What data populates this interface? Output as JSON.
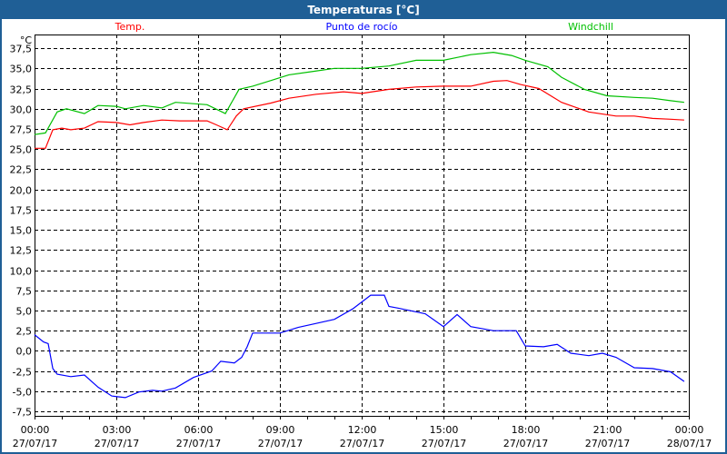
{
  "window": {
    "title": "Temperaturas [°C]"
  },
  "chart_data": {
    "type": "line",
    "title": "Temperaturas [°C]",
    "ylabel": "°C",
    "xlabel": "",
    "ylim": [
      -8.06,
      39.2
    ],
    "xlim": [
      0,
      24
    ],
    "grid": true,
    "legend_placement": "top",
    "y_ticks": [
      -7.5,
      -5,
      -2.5,
      0,
      2.5,
      5,
      7.5,
      10,
      12.5,
      15,
      17.5,
      20,
      22.5,
      25,
      27.5,
      30,
      32.5,
      35,
      37.5
    ],
    "y_tick_labels": [
      "-7,5",
      "-5,0",
      "-2,5",
      "0,0",
      "2,5",
      "5,0",
      "7,5",
      "10,0",
      "12,5",
      "15,0",
      "17,5",
      "20,0",
      "22,5",
      "25,0",
      "27,5",
      "30,0",
      "32,5",
      "35,0",
      "37,5"
    ],
    "x_ticks": [
      0,
      3,
      6,
      9,
      12,
      15,
      18,
      21,
      24
    ],
    "x_tick_labels": [
      [
        "00:00",
        "27/07/17"
      ],
      [
        "03:00",
        "27/07/17"
      ],
      [
        "06:00",
        "27/07/17"
      ],
      [
        "09:00",
        "27/07/17"
      ],
      [
        "12:00",
        "27/07/17"
      ],
      [
        "15:00",
        "27/07/17"
      ],
      [
        "18:00",
        "27/07/17"
      ],
      [
        "21:00",
        "27/07/17"
      ],
      [
        "00:00",
        "28/07/17"
      ]
    ],
    "series": [
      {
        "name": "Temp.",
        "color": "#ff0000",
        "points": [
          [
            0,
            25.1
          ],
          [
            0.4,
            25.1
          ],
          [
            0.67,
            27.4
          ],
          [
            1,
            27.6
          ],
          [
            1.33,
            27.4
          ],
          [
            1.83,
            27.6
          ],
          [
            2.33,
            28.4
          ],
          [
            3,
            28.3
          ],
          [
            3.5,
            28.0
          ],
          [
            4,
            28.3
          ],
          [
            4.67,
            28.6
          ],
          [
            5.33,
            28.5
          ],
          [
            6.33,
            28.5
          ],
          [
            6.67,
            28.0
          ],
          [
            7.07,
            27.4
          ],
          [
            7.4,
            29.1
          ],
          [
            7.67,
            30.0
          ],
          [
            8.67,
            30.7
          ],
          [
            9.33,
            31.3
          ],
          [
            10.33,
            31.8
          ],
          [
            11.33,
            32.1
          ],
          [
            12,
            31.9
          ],
          [
            13,
            32.4
          ],
          [
            14,
            32.7
          ],
          [
            15,
            32.8
          ],
          [
            16,
            32.8
          ],
          [
            16.83,
            33.4
          ],
          [
            17.33,
            33.5
          ],
          [
            17.83,
            33.0
          ],
          [
            18.5,
            32.5
          ],
          [
            19.33,
            30.8
          ],
          [
            20.33,
            29.6
          ],
          [
            21.33,
            29.1
          ],
          [
            22,
            29.1
          ],
          [
            22.67,
            28.8
          ],
          [
            23.33,
            28.7
          ],
          [
            23.83,
            28.6
          ]
        ]
      },
      {
        "name": "Punto de rocío",
        "color": "#0000ff",
        "points": [
          [
            0,
            2.0
          ],
          [
            0.33,
            1.1
          ],
          [
            0.5,
            0.9
          ],
          [
            0.67,
            -2.2
          ],
          [
            0.83,
            -2.9
          ],
          [
            1.33,
            -3.2
          ],
          [
            1.83,
            -3.0
          ],
          [
            2.33,
            -4.5
          ],
          [
            2.83,
            -5.6
          ],
          [
            3.33,
            -5.8
          ],
          [
            3.83,
            -5.1
          ],
          [
            4.33,
            -4.9
          ],
          [
            4.67,
            -5.0
          ],
          [
            5.17,
            -4.6
          ],
          [
            5.83,
            -3.3
          ],
          [
            6.5,
            -2.5
          ],
          [
            6.83,
            -1.3
          ],
          [
            7.33,
            -1.5
          ],
          [
            7.6,
            -0.8
          ],
          [
            7.8,
            0.5
          ],
          [
            8,
            2.2
          ],
          [
            9,
            2.2
          ],
          [
            9.67,
            2.9
          ],
          [
            10.33,
            3.4
          ],
          [
            11,
            3.9
          ],
          [
            11.67,
            5.2
          ],
          [
            12.33,
            6.9
          ],
          [
            12.83,
            6.9
          ],
          [
            13,
            5.5
          ],
          [
            13.33,
            5.3
          ],
          [
            14.33,
            4.6
          ],
          [
            15,
            3.0
          ],
          [
            15.5,
            4.5
          ],
          [
            16,
            3.0
          ],
          [
            16.83,
            2.5
          ],
          [
            17.67,
            2.5
          ],
          [
            18,
            0.6
          ],
          [
            18.67,
            0.5
          ],
          [
            19.17,
            0.8
          ],
          [
            19.67,
            -0.3
          ],
          [
            20.33,
            -0.6
          ],
          [
            20.83,
            -0.3
          ],
          [
            21.33,
            -0.8
          ],
          [
            22,
            -2.1
          ],
          [
            22.67,
            -2.2
          ],
          [
            23.33,
            -2.6
          ],
          [
            23.83,
            -3.8
          ]
        ]
      },
      {
        "name": "Windchill",
        "color": "#00c000",
        "points": [
          [
            0,
            26.8
          ],
          [
            0.4,
            27.0
          ],
          [
            0.83,
            29.6
          ],
          [
            1.17,
            30.0
          ],
          [
            1.83,
            29.4
          ],
          [
            2.33,
            30.4
          ],
          [
            3,
            30.3
          ],
          [
            3.33,
            30.0
          ],
          [
            4,
            30.4
          ],
          [
            4.67,
            30.1
          ],
          [
            5.17,
            30.8
          ],
          [
            6.33,
            30.5
          ],
          [
            7,
            29.4
          ],
          [
            7.5,
            32.4
          ],
          [
            8,
            32.8
          ],
          [
            8.67,
            33.5
          ],
          [
            9.33,
            34.2
          ],
          [
            10.17,
            34.6
          ],
          [
            11,
            35.0
          ],
          [
            12,
            35.0
          ],
          [
            13,
            35.3
          ],
          [
            14,
            36.0
          ],
          [
            15,
            36.0
          ],
          [
            16,
            36.7
          ],
          [
            16.83,
            37.0
          ],
          [
            17.5,
            36.6
          ],
          [
            18,
            36.0
          ],
          [
            18.83,
            35.2
          ],
          [
            19.33,
            33.9
          ],
          [
            20.17,
            32.4
          ],
          [
            21,
            31.6
          ],
          [
            22,
            31.4
          ],
          [
            22.67,
            31.3
          ],
          [
            23.33,
            31.0
          ],
          [
            23.83,
            30.8
          ]
        ]
      }
    ]
  }
}
